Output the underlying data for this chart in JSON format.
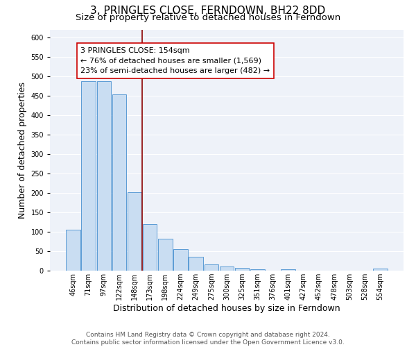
{
  "title": "3, PRINGLES CLOSE, FERNDOWN, BH22 8DD",
  "subtitle": "Size of property relative to detached houses in Ferndown",
  "xlabel": "Distribution of detached houses by size in Ferndown",
  "ylabel": "Number of detached properties",
  "bar_labels": [
    "46sqm",
    "71sqm",
    "97sqm",
    "122sqm",
    "148sqm",
    "173sqm",
    "198sqm",
    "224sqm",
    "249sqm",
    "275sqm",
    "300sqm",
    "325sqm",
    "351sqm",
    "376sqm",
    "401sqm",
    "427sqm",
    "452sqm",
    "478sqm",
    "503sqm",
    "528sqm",
    "554sqm"
  ],
  "bar_values": [
    105,
    487,
    487,
    453,
    202,
    120,
    82,
    56,
    36,
    16,
    10,
    7,
    3,
    0,
    3,
    0,
    0,
    0,
    0,
    0,
    5
  ],
  "bar_color": "#c9ddf2",
  "bar_edgecolor": "#5b9bd5",
  "background_color": "#eef2f9",
  "grid_color": "#ffffff",
  "vline_x": 4.5,
  "vline_color": "#8b0000",
  "annotation_text": "3 PRINGLES CLOSE: 154sqm\n← 76% of detached houses are smaller (1,569)\n23% of semi-detached houses are larger (482) →",
  "annotation_box_color": "#ffffff",
  "annotation_box_edgecolor": "#cc0000",
  "ylim": [
    0,
    620
  ],
  "yticks": [
    0,
    50,
    100,
    150,
    200,
    250,
    300,
    350,
    400,
    450,
    500,
    550,
    600
  ],
  "footer_text": "Contains HM Land Registry data © Crown copyright and database right 2024.\nContains public sector information licensed under the Open Government Licence v3.0.",
  "title_fontsize": 11,
  "subtitle_fontsize": 9.5,
  "axis_label_fontsize": 9,
  "tick_fontsize": 7,
  "annotation_fontsize": 8,
  "footer_fontsize": 6.5
}
